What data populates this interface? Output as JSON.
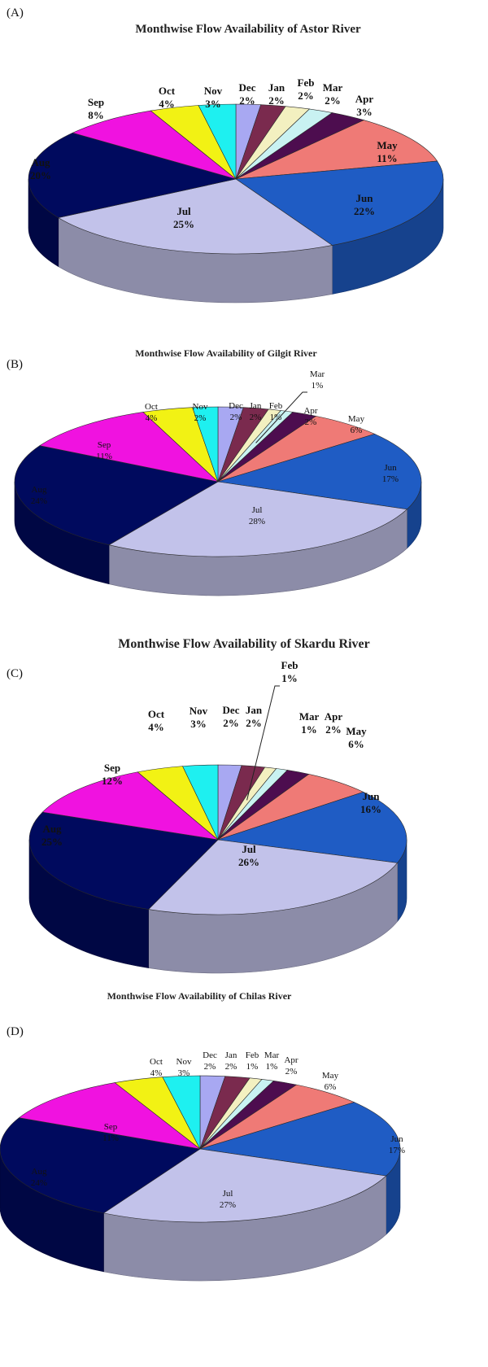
{
  "colors": {
    "Jan": "#7a2a4e",
    "Feb": "#f3f0c0",
    "Mar": "#c9f2f2",
    "Apr": "#4d0d4f",
    "May": "#ef7a76",
    "Jun": "#1f5cc4",
    "Jul": "#c2c2ea",
    "Aug": "#000a5e",
    "Sep": "#f012e0",
    "Oct": "#f2f214",
    "Nov": "#1ef0f0",
    "Dec": "#a8a8f2"
  },
  "chart_data": [
    {
      "type": "pie",
      "panel_label": "(A)",
      "title": "Monthwise Flow Availability of Astor River",
      "slices": [
        {
          "month": "Dec",
          "value": 2,
          "label": "2%"
        },
        {
          "month": "Jan",
          "value": 2,
          "label": "2%"
        },
        {
          "month": "Feb",
          "value": 2,
          "label": "2%"
        },
        {
          "month": "Mar",
          "value": 2,
          "label": "2%"
        },
        {
          "month": "Apr",
          "value": 3,
          "label": "3%"
        },
        {
          "month": "May",
          "value": 11,
          "label": "11%"
        },
        {
          "month": "Jun",
          "value": 22,
          "label": "22%"
        },
        {
          "month": "Jul",
          "value": 25,
          "label": "25%"
        },
        {
          "month": "Aug",
          "value": 20,
          "label": "20%"
        },
        {
          "month": "Sep",
          "value": 8,
          "label": "8%"
        },
        {
          "month": "Oct",
          "value": 4,
          "label": "4%"
        },
        {
          "month": "Nov",
          "value": 3,
          "label": "3%"
        }
      ]
    },
    {
      "type": "pie",
      "panel_label": "(B)",
      "title": "Monthwise Flow Availability of Gilgit River",
      "slices": [
        {
          "month": "Dec",
          "value": 2,
          "label": "2%"
        },
        {
          "month": "Jan",
          "value": 2,
          "label": "2%"
        },
        {
          "month": "Feb",
          "value": 1,
          "label": "1%"
        },
        {
          "month": "Mar",
          "value": 1,
          "label": "1%"
        },
        {
          "month": "Apr",
          "value": 2,
          "label": "2%"
        },
        {
          "month": "May",
          "value": 6,
          "label": "6%"
        },
        {
          "month": "Jun",
          "value": 17,
          "label": "17%"
        },
        {
          "month": "Jul",
          "value": 28,
          "label": "28%"
        },
        {
          "month": "Aug",
          "value": 24,
          "label": "24%"
        },
        {
          "month": "Sep",
          "value": 11,
          "label": "11%"
        },
        {
          "month": "Oct",
          "value": 4,
          "label": "4%"
        },
        {
          "month": "Nov",
          "value": 2,
          "label": "2%"
        }
      ]
    },
    {
      "type": "pie",
      "panel_label": "(C)",
      "title": "Monthwise Flow Availability of Skardu River",
      "slices": [
        {
          "month": "Dec",
          "value": 2,
          "label": "2%"
        },
        {
          "month": "Jan",
          "value": 2,
          "label": "2%"
        },
        {
          "month": "Feb",
          "value": 1,
          "label": "1%"
        },
        {
          "month": "Mar",
          "value": 1,
          "label": "1%"
        },
        {
          "month": "Apr",
          "value": 2,
          "label": "2%"
        },
        {
          "month": "May",
          "value": 6,
          "label": "6%"
        },
        {
          "month": "Jun",
          "value": 16,
          "label": "16%"
        },
        {
          "month": "Jul",
          "value": 26,
          "label": "26%"
        },
        {
          "month": "Aug",
          "value": 25,
          "label": "25%"
        },
        {
          "month": "Sep",
          "value": 12,
          "label": "12%"
        },
        {
          "month": "Oct",
          "value": 4,
          "label": "4%"
        },
        {
          "month": "Nov",
          "value": 3,
          "label": "3%"
        }
      ]
    },
    {
      "type": "pie",
      "panel_label": "(D)",
      "title": "Monthwise Flow Availability of Chilas River",
      "slices": [
        {
          "month": "Dec",
          "value": 2,
          "label": "2%"
        },
        {
          "month": "Jan",
          "value": 2,
          "label": "2%"
        },
        {
          "month": "Feb",
          "value": 1,
          "label": "1%"
        },
        {
          "month": "Mar",
          "value": 1,
          "label": "1%"
        },
        {
          "month": "Apr",
          "value": 2,
          "label": "2%"
        },
        {
          "month": "May",
          "value": 6,
          "label": "6%"
        },
        {
          "month": "Jun",
          "value": 17,
          "label": "17%"
        },
        {
          "month": "Jul",
          "value": 27,
          "label": "27%"
        },
        {
          "month": "Aug",
          "value": 24,
          "label": "24%"
        },
        {
          "month": "Sep",
          "value": 11,
          "label": "11%"
        },
        {
          "month": "Oct",
          "value": 4,
          "label": "4%"
        },
        {
          "month": "Nov",
          "value": 3,
          "label": "3%"
        }
      ]
    }
  ]
}
